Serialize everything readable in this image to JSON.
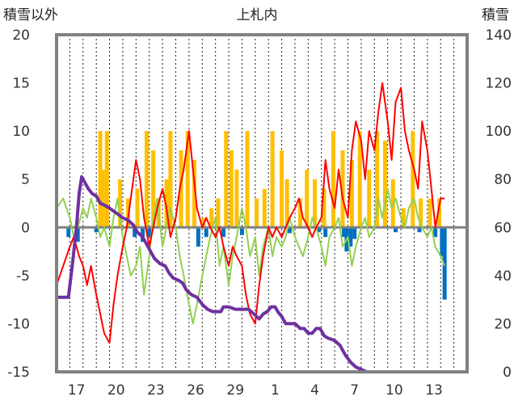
{
  "chart_data": {
    "type": "line",
    "title": "上札内",
    "left_axis": {
      "label": "積雪以外",
      "ylim": [
        -15,
        20
      ],
      "ticks": [
        "20",
        "15",
        "10",
        "5",
        "0",
        "-5",
        "-10",
        "-15"
      ]
    },
    "right_axis": {
      "label": "積雪",
      "ylim": [
        0,
        140
      ],
      "ticks": [
        "140",
        "120",
        "100",
        "80",
        "60",
        "40",
        "20",
        "0"
      ]
    },
    "x_tick_labels": [
      "17",
      "20",
      "23",
      "26",
      "29",
      "1",
      "4",
      "7",
      "10",
      "13"
    ],
    "x_range_days": [
      0,
      31
    ],
    "x_tick_positions_days": [
      1.5,
      4.5,
      7.5,
      10.5,
      13.5,
      16.5,
      19.5,
      22.5,
      25.5,
      28.5
    ],
    "colors": {
      "max_temp": "#ff0000",
      "mean_temp": "#92d050",
      "snow_depth": "#7030a0",
      "precip": "#ffc000",
      "precip_neg": "#0070c0",
      "frame": "#808080",
      "zero_line": "#808080",
      "grid": "#222222"
    },
    "series": [
      {
        "key": "max_temp",
        "axis": "left",
        "points": [
          [
            0,
            -6
          ],
          [
            0.5,
            -4
          ],
          [
            1,
            -2
          ],
          [
            1.3,
            -1
          ],
          [
            1.7,
            -3
          ],
          [
            2,
            -4
          ],
          [
            2.3,
            -6
          ],
          [
            2.6,
            -4
          ],
          [
            3,
            -7
          ],
          [
            3.3,
            -9
          ],
          [
            3.6,
            -11
          ],
          [
            4,
            -12
          ],
          [
            4.3,
            -8
          ],
          [
            4.6,
            -5
          ],
          [
            5,
            -2
          ],
          [
            5.3,
            0
          ],
          [
            5.6,
            3
          ],
          [
            6,
            7
          ],
          [
            6.3,
            5
          ],
          [
            6.6,
            1
          ],
          [
            7,
            -2
          ],
          [
            7.3,
            0
          ],
          [
            7.6,
            2
          ],
          [
            8,
            4
          ],
          [
            8.3,
            2
          ],
          [
            8.6,
            -1
          ],
          [
            9,
            1
          ],
          [
            9.3,
            4
          ],
          [
            9.6,
            6
          ],
          [
            10,
            10
          ],
          [
            10.3,
            6
          ],
          [
            10.6,
            2
          ],
          [
            11,
            0
          ],
          [
            11.3,
            1
          ],
          [
            11.6,
            0
          ],
          [
            12,
            -1
          ],
          [
            12.3,
            0
          ],
          [
            12.6,
            -2
          ],
          [
            13,
            -4
          ],
          [
            13.3,
            -2
          ],
          [
            13.6,
            -3
          ],
          [
            14,
            -4
          ],
          [
            14.3,
            -7
          ],
          [
            14.6,
            -9
          ],
          [
            15,
            -10
          ],
          [
            15.3,
            -6
          ],
          [
            15.6,
            -3
          ],
          [
            16,
            0
          ],
          [
            16.3,
            -1
          ],
          [
            16.6,
            0
          ],
          [
            17,
            -1
          ],
          [
            17.3,
            0
          ],
          [
            17.6,
            1
          ],
          [
            18,
            2
          ],
          [
            18.3,
            3
          ],
          [
            18.6,
            1
          ],
          [
            19,
            0
          ],
          [
            19.3,
            -1
          ],
          [
            19.6,
            0
          ],
          [
            20,
            1
          ],
          [
            20.3,
            7
          ],
          [
            20.6,
            4
          ],
          [
            21,
            2
          ],
          [
            21.3,
            6
          ],
          [
            21.6,
            3
          ],
          [
            22,
            1
          ],
          [
            22.3,
            8
          ],
          [
            22.6,
            11
          ],
          [
            23,
            9
          ],
          [
            23.3,
            5
          ],
          [
            23.6,
            10
          ],
          [
            24,
            8
          ],
          [
            24.3,
            12
          ],
          [
            24.6,
            15
          ],
          [
            25,
            11
          ],
          [
            25.3,
            7
          ],
          [
            25.6,
            13
          ],
          [
            26,
            14.5
          ],
          [
            26.3,
            10
          ],
          [
            26.6,
            8
          ],
          [
            27,
            6
          ],
          [
            27.3,
            4
          ],
          [
            27.6,
            11
          ],
          [
            28,
            8
          ],
          [
            28.3,
            4
          ],
          [
            28.6,
            0
          ],
          [
            29,
            3
          ],
          [
            29.3,
            3
          ]
        ]
      },
      {
        "key": "mean_temp",
        "axis": "left",
        "points": [
          [
            0,
            2
          ],
          [
            0.5,
            3
          ],
          [
            1,
            1
          ],
          [
            1.3,
            -1
          ],
          [
            1.6,
            0
          ],
          [
            2,
            2
          ],
          [
            2.3,
            1
          ],
          [
            2.6,
            3
          ],
          [
            3,
            1
          ],
          [
            3.3,
            -1
          ],
          [
            3.6,
            0
          ],
          [
            4,
            -2
          ],
          [
            4.3,
            1
          ],
          [
            4.6,
            3
          ],
          [
            5,
            -1
          ],
          [
            5.3,
            -3
          ],
          [
            5.6,
            -5
          ],
          [
            6,
            -4
          ],
          [
            6.3,
            -2
          ],
          [
            6.6,
            -7
          ],
          [
            7,
            -3
          ],
          [
            7.3,
            1
          ],
          [
            7.6,
            3
          ],
          [
            8,
            -2
          ],
          [
            8.3,
            0
          ],
          [
            8.6,
            2
          ],
          [
            9,
            0
          ],
          [
            9.3,
            -3
          ],
          [
            9.6,
            -5
          ],
          [
            10,
            -8
          ],
          [
            10.3,
            -10
          ],
          [
            10.6,
            -8
          ],
          [
            11,
            -5
          ],
          [
            11.3,
            -3
          ],
          [
            11.6,
            -1
          ],
          [
            12,
            1
          ],
          [
            12.3,
            -4
          ],
          [
            12.6,
            -2
          ],
          [
            13,
            -6
          ],
          [
            13.3,
            -3
          ],
          [
            13.6,
            -1
          ],
          [
            14,
            2
          ],
          [
            14.3,
            0
          ],
          [
            14.6,
            -3
          ],
          [
            15,
            -1
          ],
          [
            15.3,
            -5
          ],
          [
            15.6,
            -2
          ],
          [
            16,
            0
          ],
          [
            16.3,
            -3
          ],
          [
            16.6,
            -1
          ],
          [
            17,
            -2
          ],
          [
            17.3,
            -1
          ],
          [
            17.6,
            1
          ],
          [
            18,
            -1
          ],
          [
            18.3,
            -2
          ],
          [
            18.6,
            -3
          ],
          [
            19,
            -1
          ],
          [
            19.3,
            1
          ],
          [
            19.6,
            0
          ],
          [
            20,
            -2
          ],
          [
            20.3,
            -4
          ],
          [
            20.6,
            -1
          ],
          [
            21,
            0
          ],
          [
            21.3,
            1
          ],
          [
            21.6,
            -2
          ],
          [
            22,
            -1
          ],
          [
            22.3,
            -4
          ],
          [
            22.6,
            -2
          ],
          [
            23,
            0
          ],
          [
            23.3,
            1
          ],
          [
            23.6,
            -1
          ],
          [
            24,
            0
          ],
          [
            24.3,
            3
          ],
          [
            24.6,
            1
          ],
          [
            25,
            4
          ],
          [
            25.3,
            2
          ],
          [
            25.6,
            3
          ],
          [
            26,
            1
          ],
          [
            26.3,
            0
          ],
          [
            26.6,
            2
          ],
          [
            27,
            3
          ],
          [
            27.3,
            1
          ],
          [
            27.6,
            0
          ],
          [
            28,
            -1
          ],
          [
            28.3,
            0
          ],
          [
            28.6,
            -2
          ],
          [
            29,
            -3
          ],
          [
            29.3,
            -4
          ]
        ]
      },
      {
        "key": "snow_depth",
        "axis": "right",
        "points": [
          [
            0,
            31
          ],
          [
            0.9,
            31
          ],
          [
            1.2,
            45
          ],
          [
            1.5,
            60
          ],
          [
            1.7,
            74
          ],
          [
            1.9,
            81
          ],
          [
            2.1,
            79
          ],
          [
            2.4,
            76
          ],
          [
            2.7,
            74
          ],
          [
            3,
            73
          ],
          [
            3.3,
            70
          ],
          [
            3.7,
            69
          ],
          [
            4,
            68
          ],
          [
            4.5,
            66
          ],
          [
            5,
            64
          ],
          [
            5.4,
            63
          ],
          [
            5.8,
            61
          ],
          [
            6.1,
            58
          ],
          [
            6.5,
            56
          ],
          [
            6.8,
            53
          ],
          [
            7.1,
            50
          ],
          [
            7.4,
            47
          ],
          [
            7.8,
            45
          ],
          [
            8.2,
            44
          ],
          [
            8.5,
            41
          ],
          [
            8.8,
            39
          ],
          [
            9.2,
            38
          ],
          [
            9.5,
            37
          ],
          [
            9.8,
            34
          ],
          [
            10.2,
            32
          ],
          [
            10.6,
            31
          ],
          [
            11,
            28
          ],
          [
            11.4,
            26
          ],
          [
            11.8,
            25
          ],
          [
            12.2,
            25
          ],
          [
            12.4,
            25
          ],
          [
            12.6,
            27
          ],
          [
            13,
            27
          ],
          [
            13.5,
            26
          ],
          [
            14,
            26
          ],
          [
            14.5,
            26
          ],
          [
            14.9,
            24
          ],
          [
            15.3,
            22
          ],
          [
            15.6,
            24
          ],
          [
            15.9,
            25
          ],
          [
            16.2,
            27
          ],
          [
            16.5,
            27
          ],
          [
            16.7,
            25
          ],
          [
            17,
            23
          ],
          [
            17.3,
            20
          ],
          [
            17.7,
            20
          ],
          [
            18,
            20
          ],
          [
            18.4,
            18
          ],
          [
            18.7,
            18
          ],
          [
            19,
            16
          ],
          [
            19.3,
            16
          ],
          [
            19.6,
            18
          ],
          [
            19.9,
            18
          ],
          [
            20.2,
            15
          ],
          [
            20.5,
            14
          ],
          [
            21,
            13
          ],
          [
            21.4,
            11
          ],
          [
            21.8,
            7
          ],
          [
            22.2,
            4
          ],
          [
            22.6,
            2
          ],
          [
            23,
            1
          ],
          [
            23.4,
            0
          ],
          [
            24,
            0
          ],
          [
            31,
            0
          ]
        ]
      }
    ],
    "precip_positive": [
      [
        3.3,
        10
      ],
      [
        3.5,
        6
      ],
      [
        3.8,
        10
      ],
      [
        4.8,
        5
      ],
      [
        5.4,
        3
      ],
      [
        6.1,
        4
      ],
      [
        6.8,
        10
      ],
      [
        7.3,
        8
      ],
      [
        7.7,
        3
      ],
      [
        8.3,
        5
      ],
      [
        8.6,
        10
      ],
      [
        9.4,
        8
      ],
      [
        9.9,
        10
      ],
      [
        10.4,
        7
      ],
      [
        11.1,
        1
      ],
      [
        11.7,
        2
      ],
      [
        12.2,
        3
      ],
      [
        12.8,
        10
      ],
      [
        13.2,
        8
      ],
      [
        13.6,
        6
      ],
      [
        14.4,
        10
      ],
      [
        15.1,
        3
      ],
      [
        15.7,
        4
      ],
      [
        16.3,
        10
      ],
      [
        17,
        8
      ],
      [
        17.4,
        5
      ],
      [
        18.4,
        3
      ],
      [
        18.9,
        6
      ],
      [
        19.5,
        5
      ],
      [
        20.2,
        4
      ],
      [
        20.9,
        10
      ],
      [
        21.6,
        8
      ],
      [
        22.3,
        7
      ],
      [
        22.9,
        10
      ],
      [
        23.6,
        6
      ],
      [
        24.2,
        10
      ],
      [
        24.8,
        9
      ],
      [
        25.4,
        5
      ],
      [
        26.2,
        2
      ],
      [
        26.9,
        10
      ],
      [
        27.5,
        3
      ],
      [
        28.2,
        3
      ],
      [
        28.9,
        3
      ]
    ],
    "precip_negative": [
      [
        0.9,
        -1
      ],
      [
        1.6,
        -1.5
      ],
      [
        3.0,
        -0.5
      ],
      [
        5.9,
        -1
      ],
      [
        6.5,
        -1.5
      ],
      [
        7.0,
        -1
      ],
      [
        10.7,
        -2
      ],
      [
        11.3,
        -1
      ],
      [
        12.6,
        -1
      ],
      [
        14.0,
        -0.8
      ],
      [
        17.6,
        -0.6
      ],
      [
        19.8,
        -0.5
      ],
      [
        20.3,
        -1
      ],
      [
        21.7,
        -1
      ],
      [
        21.9,
        -2.5
      ],
      [
        22.2,
        -2
      ],
      [
        22.5,
        -1.2
      ],
      [
        25.6,
        -0.5
      ],
      [
        27.4,
        -0.5
      ],
      [
        28.6,
        -1
      ],
      [
        29.1,
        -3
      ],
      [
        29.3,
        -7.5
      ]
    ]
  }
}
